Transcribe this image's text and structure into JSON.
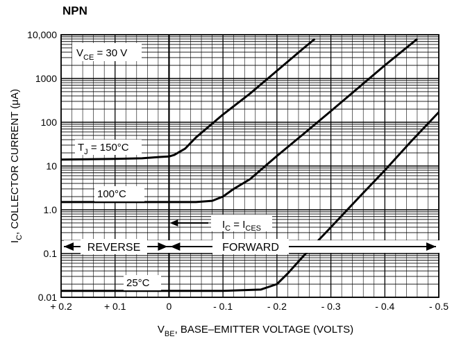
{
  "header": {
    "title": "NPN"
  },
  "chart_data": {
    "type": "line",
    "title": "NPN",
    "xlabel": {
      "main": "V",
      "sub": "BE",
      "rest": ", BASE–EMITTER VOLTAGE (VOLTS)"
    },
    "ylabel": {
      "main": "I",
      "sub": "C",
      "rest": ", COLLECTOR CURRENT (μA)"
    },
    "x_axis": {
      "direction": "decreasing-left-to-right",
      "xlim": [
        0.2,
        -0.5
      ],
      "ticks": [
        0.2,
        0.1,
        0,
        -0.1,
        -0.2,
        -0.3,
        -0.4,
        -0.5
      ],
      "tick_labels": [
        "+ 0.2",
        "+ 0.1",
        "0",
        "- 0.1",
        "- 0.2",
        "- 0.3",
        "- 0.4",
        "- 0.5"
      ]
    },
    "y_axis": {
      "scale": "log",
      "ylim": [
        0.01,
        10000
      ],
      "ticks": [
        0.01,
        0.1,
        1,
        10,
        100,
        1000,
        10000
      ],
      "tick_labels": [
        "0.01",
        "0.1",
        "1.0",
        "10",
        "100",
        "1000",
        "10,000"
      ]
    },
    "grid": true,
    "series": [
      {
        "name": "T_J = 150°C",
        "points": [
          [
            0.2,
            14
          ],
          [
            0.1,
            14.5
          ],
          [
            0.05,
            15
          ],
          [
            0.02,
            16
          ],
          [
            0,
            16.5
          ],
          [
            -0.01,
            18
          ],
          [
            -0.03,
            25
          ],
          [
            -0.05,
            45
          ],
          [
            -0.1,
            150
          ],
          [
            -0.15,
            450
          ],
          [
            -0.2,
            1500
          ],
          [
            -0.25,
            5000
          ],
          [
            -0.27,
            8000
          ]
        ]
      },
      {
        "name": "100°C",
        "points": [
          [
            0.2,
            1.5
          ],
          [
            0.1,
            1.5
          ],
          [
            0,
            1.5
          ],
          [
            -0.05,
            1.5
          ],
          [
            -0.08,
            1.6
          ],
          [
            -0.1,
            2
          ],
          [
            -0.12,
            3
          ],
          [
            -0.15,
            5
          ],
          [
            -0.2,
            17
          ],
          [
            -0.25,
            55
          ],
          [
            -0.3,
            180
          ],
          [
            -0.35,
            600
          ],
          [
            -0.4,
            2000
          ],
          [
            -0.43,
            4000
          ],
          [
            -0.46,
            8000
          ]
        ]
      },
      {
        "name": "25°C",
        "points": [
          [
            0.2,
            0.014
          ],
          [
            0.1,
            0.014
          ],
          [
            0,
            0.014
          ],
          [
            -0.1,
            0.014
          ],
          [
            -0.17,
            0.015
          ],
          [
            -0.2,
            0.02
          ],
          [
            -0.22,
            0.035
          ],
          [
            -0.25,
            0.09
          ],
          [
            -0.3,
            0.4
          ],
          [
            -0.35,
            1.8
          ],
          [
            -0.4,
            8
          ],
          [
            -0.45,
            38
          ],
          [
            -0.5,
            170
          ],
          [
            -0.54,
            600
          ]
        ]
      }
    ],
    "series_labels": [
      {
        "text": "T",
        "sub": "J",
        "rest": " = 150°C"
      },
      {
        "text": "100°C",
        "sub": "",
        "rest": ""
      },
      {
        "text": "25°C",
        "sub": "",
        "rest": ""
      }
    ],
    "annotations": {
      "vce": {
        "main": "V",
        "sub": "CE",
        "rest": " = 30 V"
      },
      "ic_ices": {
        "main": "I",
        "sub": "C",
        "mid": " = I",
        "sub2": "CES"
      },
      "reverse": "REVERSE",
      "forward": "FORWARD"
    }
  }
}
